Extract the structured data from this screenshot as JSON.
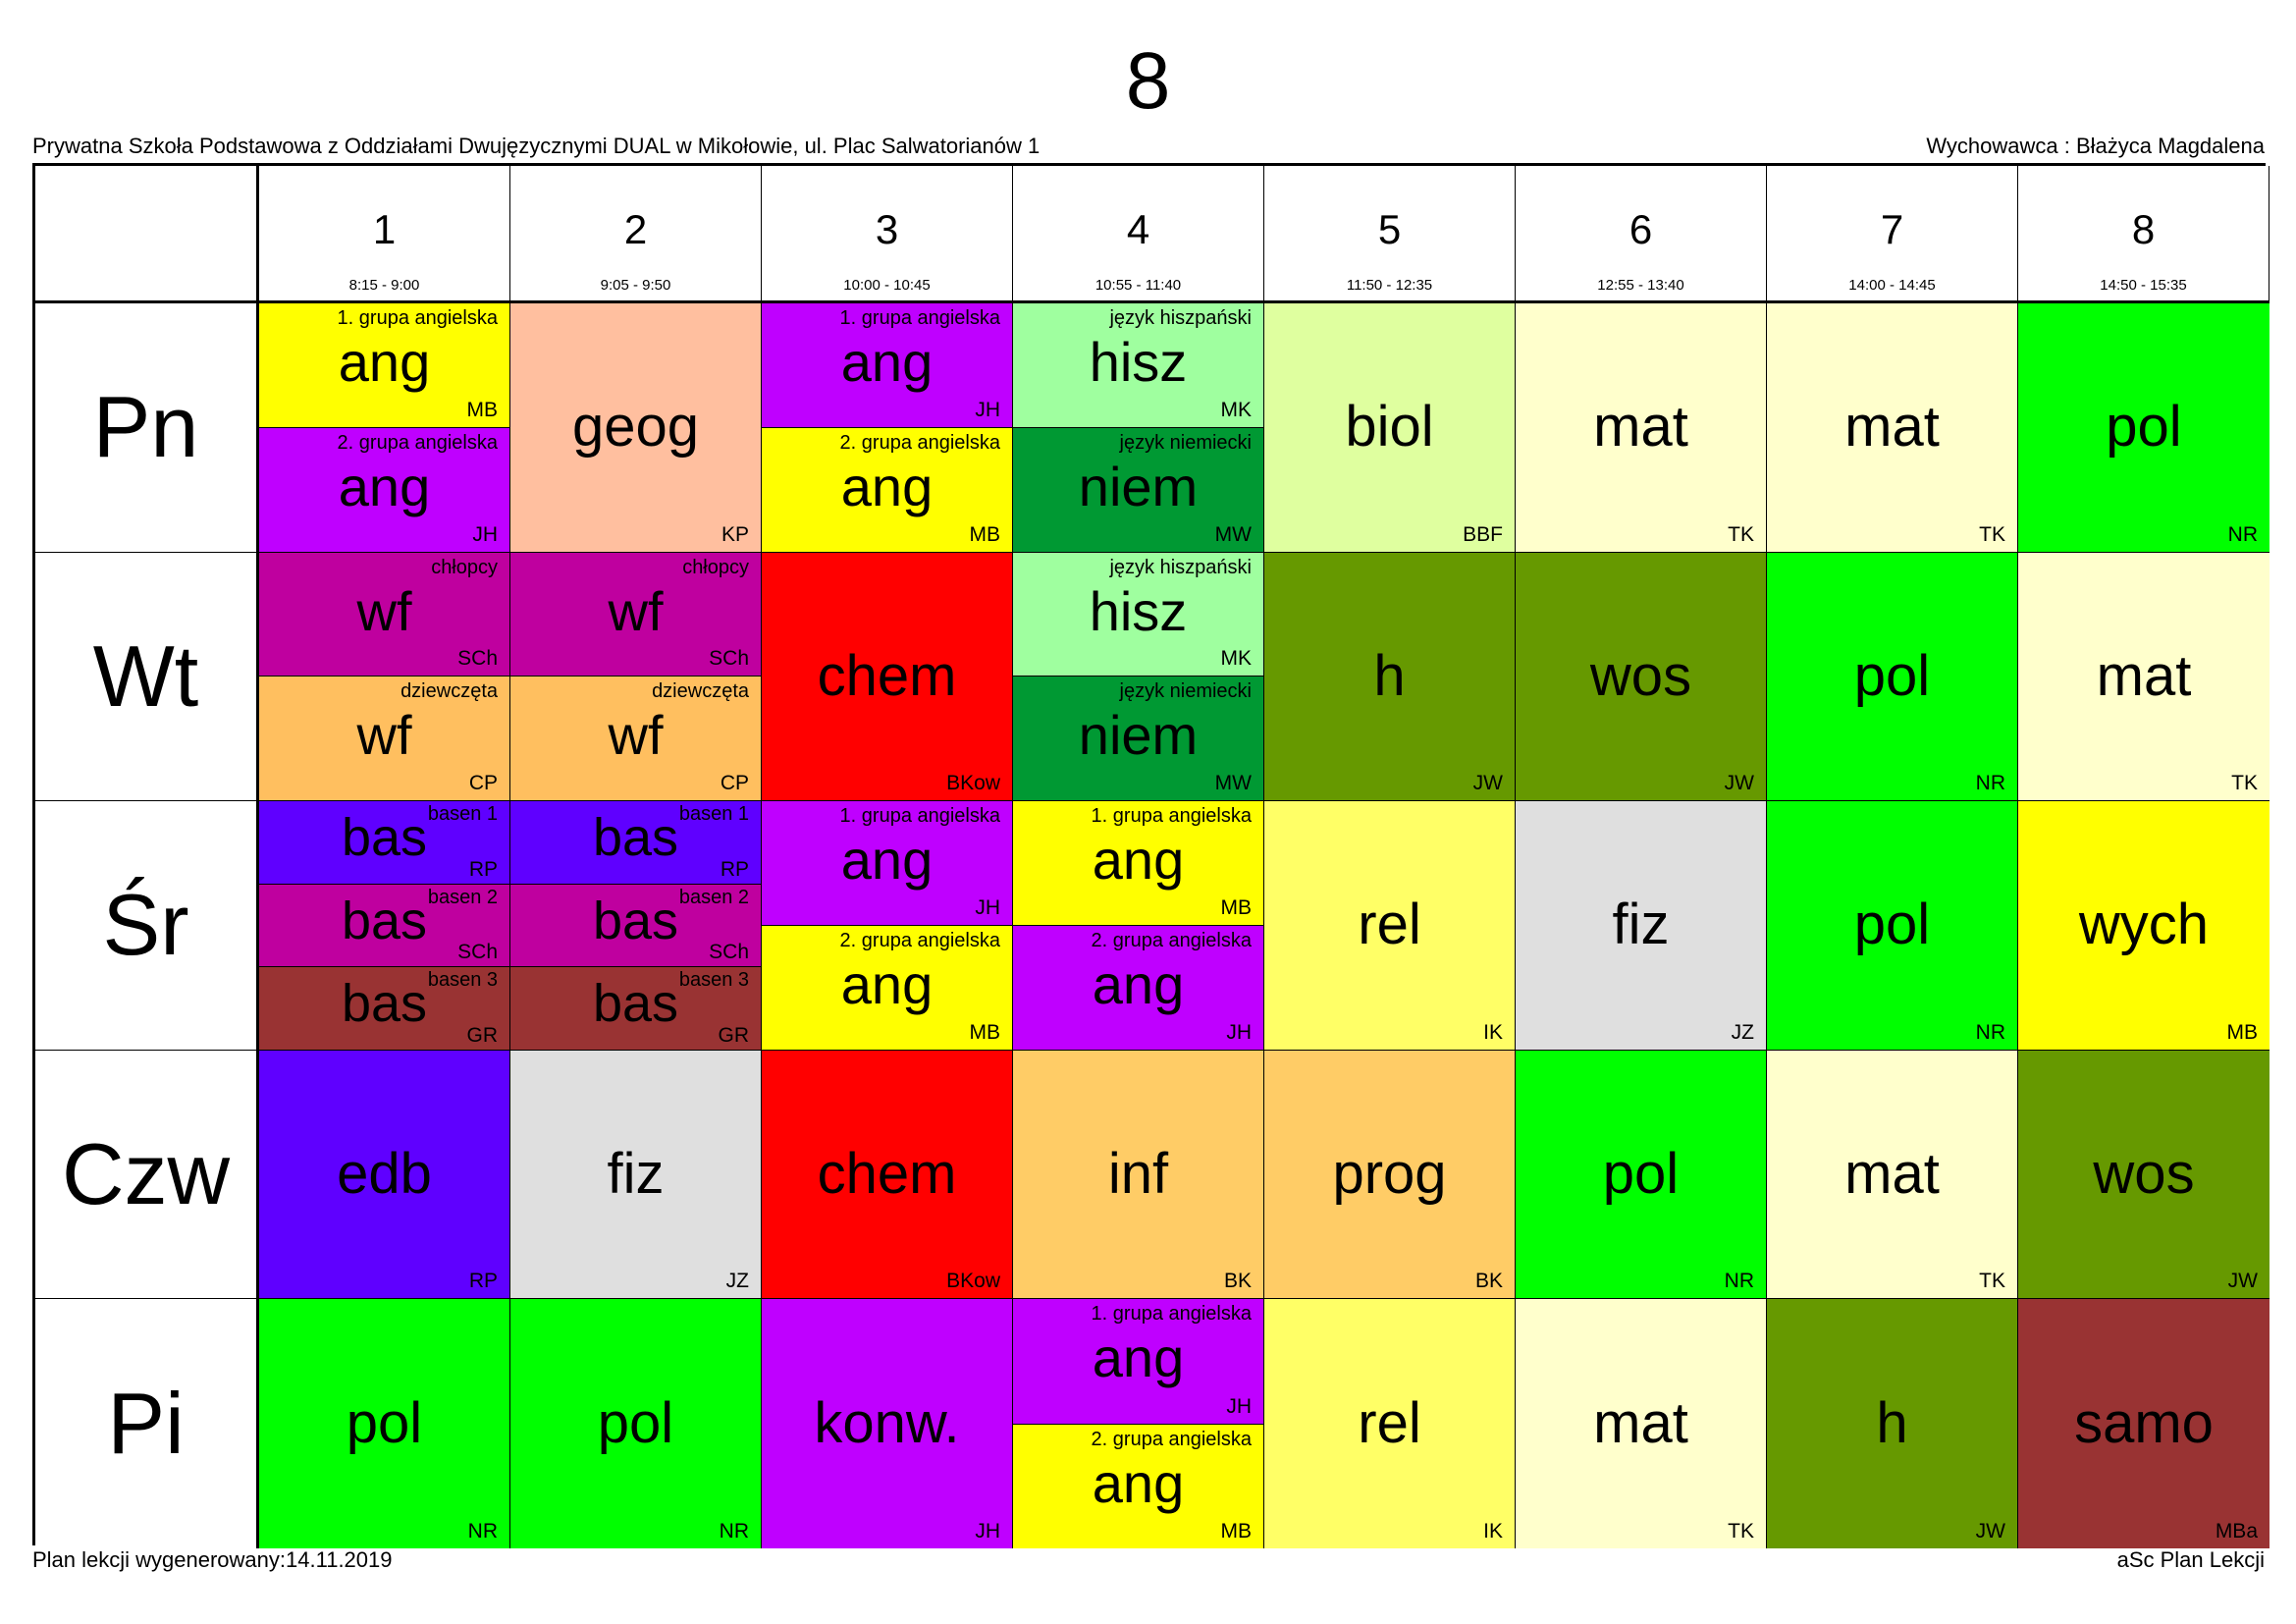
{
  "header": {
    "title": "8",
    "school": "Prywatna Szkoła Podstawowa z Oddziałami Dwujęzycznymi DUAL w Mikołowie, ul. Plac Salwatorianów 1",
    "class_teacher": "Wychowawca : Błażyca Magdalena"
  },
  "footer": {
    "generated": "Plan lekcji wygenerowany:14.11.2019",
    "software": "aSc Plan Lekcji"
  },
  "periods": [
    {
      "num": "1",
      "time": "8:15 - 9:00"
    },
    {
      "num": "2",
      "time": "9:05 - 9:50"
    },
    {
      "num": "3",
      "time": "10:00 - 10:45"
    },
    {
      "num": "4",
      "time": "10:55 - 11:40"
    },
    {
      "num": "5",
      "time": "11:50 - 12:35"
    },
    {
      "num": "6",
      "time": "12:55 - 13:40"
    },
    {
      "num": "7",
      "time": "14:00 - 14:45"
    },
    {
      "num": "8",
      "time": "14:50 - 15:35"
    }
  ],
  "days": [
    {
      "name": "Pn",
      "cells": [
        [
          {
            "group": "1. grupa angielska",
            "subject": "ang",
            "teacher": "MB",
            "color": "#ffff00"
          },
          {
            "group": "2. grupa angielska",
            "subject": "ang",
            "teacher": "JH",
            "color": "#bf00ff"
          }
        ],
        [
          {
            "group": "",
            "subject": "geog",
            "teacher": "KP",
            "color": "#ffbf9f"
          }
        ],
        [
          {
            "group": "1. grupa angielska",
            "subject": "ang",
            "teacher": "JH",
            "color": "#bf00ff"
          },
          {
            "group": "2. grupa angielska",
            "subject": "ang",
            "teacher": "MB",
            "color": "#ffff00"
          }
        ],
        [
          {
            "group": "język hiszpański",
            "subject": "hisz",
            "teacher": "MK",
            "color": "#9fff9f"
          },
          {
            "group": "język niemiecki",
            "subject": "niem",
            "teacher": "MW",
            "color": "#009933"
          }
        ],
        [
          {
            "group": "",
            "subject": "biol",
            "teacher": "BBF",
            "color": "#dfff9f"
          }
        ],
        [
          {
            "group": "",
            "subject": "mat",
            "teacher": "TK",
            "color": "#ffffcc"
          }
        ],
        [
          {
            "group": "",
            "subject": "mat",
            "teacher": "TK",
            "color": "#ffffcc"
          }
        ],
        [
          {
            "group": "",
            "subject": "pol",
            "teacher": "NR",
            "color": "#00ff00"
          }
        ]
      ]
    },
    {
      "name": "Wt",
      "cells": [
        [
          {
            "group": "chłopcy",
            "subject": "wf",
            "teacher": "SCh",
            "color": "#bf009f"
          },
          {
            "group": "dziewczęta",
            "subject": "wf",
            "teacher": "CP",
            "color": "#ffbf5f"
          }
        ],
        [
          {
            "group": "chłopcy",
            "subject": "wf",
            "teacher": "SCh",
            "color": "#bf009f"
          },
          {
            "group": "dziewczęta",
            "subject": "wf",
            "teacher": "CP",
            "color": "#ffbf5f"
          }
        ],
        [
          {
            "group": "",
            "subject": "chem",
            "teacher": "BKow",
            "color": "#ff0000"
          }
        ],
        [
          {
            "group": "język hiszpański",
            "subject": "hisz",
            "teacher": "MK",
            "color": "#9fff9f"
          },
          {
            "group": "język niemiecki",
            "subject": "niem",
            "teacher": "MW",
            "color": "#009933"
          }
        ],
        [
          {
            "group": "",
            "subject": "h",
            "teacher": "JW",
            "color": "#669900"
          }
        ],
        [
          {
            "group": "",
            "subject": "wos",
            "teacher": "JW",
            "color": "#669900"
          }
        ],
        [
          {
            "group": "",
            "subject": "pol",
            "teacher": "NR",
            "color": "#00ff00"
          }
        ],
        [
          {
            "group": "",
            "subject": "mat",
            "teacher": "TK",
            "color": "#ffffcc"
          }
        ]
      ]
    },
    {
      "name": "Śr",
      "cells": [
        [
          {
            "group": "basen 1",
            "subject": "bas",
            "teacher": "RP",
            "color": "#5f00ff"
          },
          {
            "group": "basen 2",
            "subject": "bas",
            "teacher": "SCh",
            "color": "#bf009f"
          },
          {
            "group": "basen 3",
            "subject": "bas",
            "teacher": "GR",
            "color": "#993333"
          }
        ],
        [
          {
            "group": "basen 1",
            "subject": "bas",
            "teacher": "RP",
            "color": "#5f00ff"
          },
          {
            "group": "basen 2",
            "subject": "bas",
            "teacher": "SCh",
            "color": "#bf009f"
          },
          {
            "group": "basen 3",
            "subject": "bas",
            "teacher": "GR",
            "color": "#993333"
          }
        ],
        [
          {
            "group": "1. grupa angielska",
            "subject": "ang",
            "teacher": "JH",
            "color": "#bf00ff"
          },
          {
            "group": "2. grupa angielska",
            "subject": "ang",
            "teacher": "MB",
            "color": "#ffff00"
          }
        ],
        [
          {
            "group": "1. grupa angielska",
            "subject": "ang",
            "teacher": "MB",
            "color": "#ffff00"
          },
          {
            "group": "2. grupa angielska",
            "subject": "ang",
            "teacher": "JH",
            "color": "#bf00ff"
          }
        ],
        [
          {
            "group": "",
            "subject": "rel",
            "teacher": "IK",
            "color": "#ffff66"
          }
        ],
        [
          {
            "group": "",
            "subject": "fiz",
            "teacher": "JZ",
            "color": "#dfdfdf"
          }
        ],
        [
          {
            "group": "",
            "subject": "pol",
            "teacher": "NR",
            "color": "#00ff00"
          }
        ],
        [
          {
            "group": "",
            "subject": "wych",
            "teacher": "MB",
            "color": "#ffff00"
          }
        ]
      ]
    },
    {
      "name": "Czw",
      "cells": [
        [
          {
            "group": "",
            "subject": "edb",
            "teacher": "RP",
            "color": "#5f00ff"
          }
        ],
        [
          {
            "group": "",
            "subject": "fiz",
            "teacher": "JZ",
            "color": "#dfdfdf"
          }
        ],
        [
          {
            "group": "",
            "subject": "chem",
            "teacher": "BKow",
            "color": "#ff0000"
          }
        ],
        [
          {
            "group": "",
            "subject": "inf",
            "teacher": "BK",
            "color": "#ffcc66"
          }
        ],
        [
          {
            "group": "",
            "subject": "prog",
            "teacher": "BK",
            "color": "#ffcc66"
          }
        ],
        [
          {
            "group": "",
            "subject": "pol",
            "teacher": "NR",
            "color": "#00ff00"
          }
        ],
        [
          {
            "group": "",
            "subject": "mat",
            "teacher": "TK",
            "color": "#ffffcc"
          }
        ],
        [
          {
            "group": "",
            "subject": "wos",
            "teacher": "JW",
            "color": "#669900"
          }
        ]
      ]
    },
    {
      "name": "Pi",
      "cells": [
        [
          {
            "group": "",
            "subject": "pol",
            "teacher": "NR",
            "color": "#00ff00"
          }
        ],
        [
          {
            "group": "",
            "subject": "pol",
            "teacher": "NR",
            "color": "#00ff00"
          }
        ],
        [
          {
            "group": "",
            "subject": "konw.",
            "teacher": "JH",
            "color": "#bf00ff"
          }
        ],
        [
          {
            "group": "1. grupa angielska",
            "subject": "ang",
            "teacher": "JH",
            "color": "#bf00ff"
          },
          {
            "group": "2. grupa angielska",
            "subject": "ang",
            "teacher": "MB",
            "color": "#ffff00"
          }
        ],
        [
          {
            "group": "",
            "subject": "rel",
            "teacher": "IK",
            "color": "#ffff66"
          }
        ],
        [
          {
            "group": "",
            "subject": "mat",
            "teacher": "TK",
            "color": "#ffffcc"
          }
        ],
        [
          {
            "group": "",
            "subject": "h",
            "teacher": "JW",
            "color": "#669900"
          }
        ],
        [
          {
            "group": "",
            "subject": "samo",
            "teacher": "MBa",
            "color": "#993333"
          }
        ]
      ]
    }
  ]
}
